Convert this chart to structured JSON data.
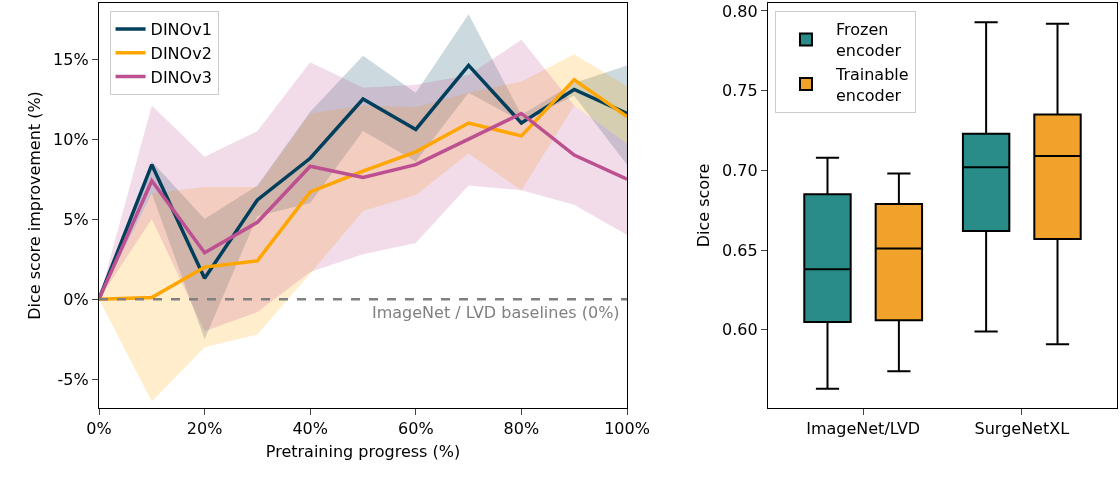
{
  "chart_data": [
    {
      "type": "line",
      "xlabel": "Pretraining progress (%)",
      "ylabel": "Dice score improvement (%)",
      "x": [
        0,
        10,
        20,
        30,
        40,
        50,
        60,
        70,
        80,
        90,
        100
      ],
      "series": [
        {
          "name": "DINOv1",
          "color": "#003f5c",
          "values": [
            0,
            8.4,
            1.3,
            6.2,
            8.8,
            12.5,
            10.6,
            14.6,
            11.0,
            13.1,
            11.6
          ],
          "lower": [
            0,
            6.6,
            -2.5,
            5.2,
            6.0,
            10.5,
            8.6,
            12.9,
            11.1,
            12.7,
            8.4
          ],
          "upper": [
            0,
            8.6,
            5.0,
            7.1,
            11.7,
            15.2,
            12.9,
            17.8,
            11.5,
            13.5,
            14.6
          ]
        },
        {
          "name": "DINOv2",
          "color": "#ffa600",
          "values": [
            0,
            0.1,
            2.0,
            2.4,
            6.7,
            8.0,
            9.2,
            11.0,
            10.2,
            13.7,
            11.4
          ],
          "lower": [
            0,
            -6.4,
            -3.0,
            -2.2,
            1.6,
            5.5,
            6.5,
            9.1,
            6.8,
            12.1,
            9.7
          ],
          "upper": [
            0,
            6.6,
            7.0,
            7.0,
            11.6,
            12.1,
            12.0,
            12.9,
            13.6,
            15.3,
            13.3
          ]
        },
        {
          "name": "DINOv3",
          "color": "#bc5090",
          "values": [
            0,
            7.4,
            2.9,
            4.8,
            8.3,
            7.6,
            8.4,
            10.0,
            11.6,
            9.0,
            7.5
          ],
          "lower": [
            0,
            5.0,
            -2.0,
            -0.8,
            1.7,
            2.8,
            3.5,
            7.1,
            6.8,
            5.9,
            4.0
          ],
          "upper": [
            0,
            12.1,
            8.9,
            10.5,
            14.8,
            13.2,
            13.4,
            14.0,
            16.2,
            12.1,
            9.7
          ]
        }
      ],
      "xlim": [
        0,
        100
      ],
      "xticks": [
        {
          "value": 0,
          "label": "0%"
        },
        {
          "value": 20,
          "label": "20%"
        },
        {
          "value": 40,
          "label": "40%"
        },
        {
          "value": 60,
          "label": "60%"
        },
        {
          "value": 80,
          "label": "80%"
        },
        {
          "value": 100,
          "label": "100%"
        }
      ],
      "ylim": [
        -6.8,
        18.5
      ],
      "yticks": [
        {
          "value": -5,
          "label": "-5%"
        },
        {
          "value": 0,
          "label": "0%"
        },
        {
          "value": 5,
          "label": "5%"
        },
        {
          "value": 10,
          "label": "10%"
        },
        {
          "value": 15,
          "label": "15%"
        }
      ],
      "ref_lines": [
        {
          "axis": "y",
          "value": 0,
          "label": "ImageNet / LVD baselines (0%)",
          "color": "#808080",
          "line_style": "dashed"
        }
      ],
      "grid": false,
      "legend": "top left"
    },
    {
      "type": "box",
      "ylabel": "Dice score",
      "categories": [
        "ImageNet/LVD",
        "SurgeNetXL"
      ],
      "series": [
        {
          "name": "Frozen encoder",
          "color": "#2a8c89",
          "boxes": [
            {
              "low": 0.563,
              "q1": 0.605,
              "median": 0.638,
              "q3": 0.685,
              "high": 0.708
            },
            {
              "low": 0.599,
              "q1": 0.662,
              "median": 0.702,
              "q3": 0.723,
              "high": 0.793
            }
          ]
        },
        {
          "name": "Trainable encoder",
          "color": "#f0a22a",
          "boxes": [
            {
              "low": 0.574,
              "q1": 0.606,
              "median": 0.651,
              "q3": 0.679,
              "high": 0.698
            },
            {
              "low": 0.591,
              "q1": 0.657,
              "median": 0.709,
              "q3": 0.735,
              "high": 0.792
            }
          ]
        }
      ],
      "ylim": [
        0.551,
        0.805
      ],
      "yticks": [
        {
          "value": 0.6,
          "label": "0.60"
        },
        {
          "value": 0.65,
          "label": "0.65"
        },
        {
          "value": 0.7,
          "label": "0.70"
        },
        {
          "value": 0.75,
          "label": "0.75"
        },
        {
          "value": 0.8,
          "label": "0.80"
        }
      ],
      "grid": false,
      "legend": "top left"
    }
  ]
}
